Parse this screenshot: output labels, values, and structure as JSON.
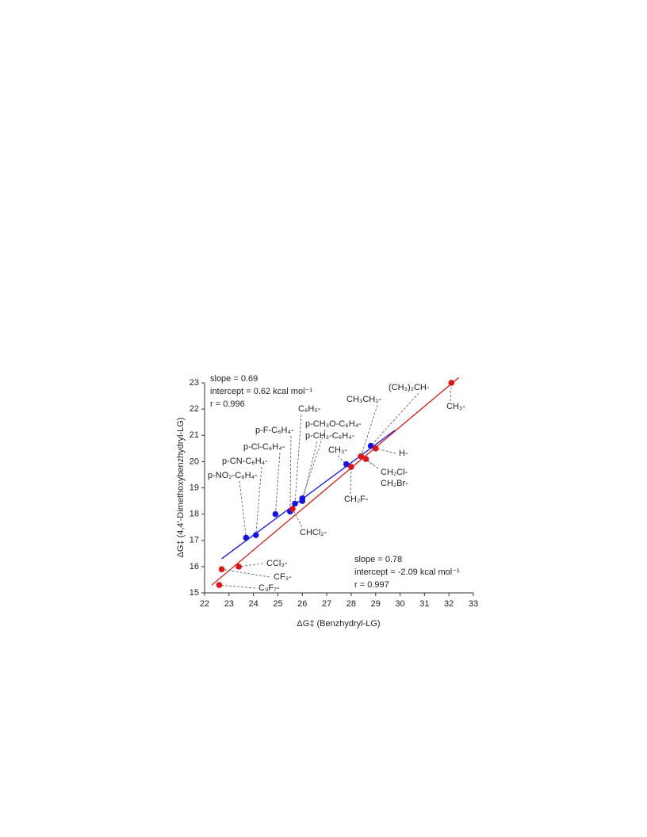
{
  "chart_data": {
    "type": "scatter",
    "x_label": "ΔG‡ (Benzhydryl-LG)",
    "y_label": "ΔG‡ (4,4'-Dimethoxybenzhydryl-LG)",
    "xlim": [
      22,
      33
    ],
    "xticks": [
      22,
      23,
      24,
      25,
      26,
      27,
      28,
      29,
      30,
      31,
      32,
      33
    ],
    "ylim": [
      15,
      23
    ],
    "yticks": [
      15,
      16,
      17,
      18,
      19,
      20,
      21,
      22,
      23
    ],
    "series": [
      {
        "color": "#1414e6",
        "x": [
          23.7,
          24.1,
          24.9,
          25.5,
          25.7,
          26.0,
          26.0,
          27.8,
          28.4,
          28.8
        ],
        "values": [
          17.1,
          17.2,
          18.0,
          18.1,
          18.4,
          18.5,
          18.6,
          19.9,
          20.2,
          20.6
        ],
        "point_labels": [
          "p-NO₂-C₆H₄-",
          "p-CN-C₆H₄-",
          "p-Cl-C₆H₄-",
          "p-F-C₆H₄-",
          "C₆H₅-",
          "p-CH₃-C₆H₄-",
          "p-CH₃O-C₆H₄-",
          "CH₃-",
          "CH₃CH₂-",
          "(CH₃)₂CH-"
        ],
        "fit": {
          "x": [
            22.7,
            29.8
          ],
          "y": [
            16.3,
            21.2
          ]
        },
        "annotations": [
          "slope = 0.69",
          "intercept = 0.62 kcal mol⁻¹",
          "r = 0.996"
        ]
      },
      {
        "color": "#e01414",
        "x": [
          22.6,
          22.7,
          23.4,
          25.6,
          28.0,
          28.4,
          28.6,
          29.0,
          32.1
        ],
        "values": [
          15.3,
          15.9,
          16.0,
          18.2,
          19.8,
          20.2,
          20.1,
          20.5,
          23.0
        ],
        "point_labels": [
          "C₃F₇-",
          "CF₃-",
          "CCl₃-",
          "CHCl₂-",
          "CH₂F-",
          "CH₂Cl-",
          "CH₂Br-",
          "H-",
          "CH₃-"
        ],
        "fit": {
          "x": [
            22.3,
            32.4
          ],
          "y": [
            15.3,
            23.2
          ]
        },
        "annotations": [
          "slope = 0.78",
          "intercept = -2.09 kcal mol⁻¹",
          "r = 0.997"
        ]
      }
    ]
  }
}
